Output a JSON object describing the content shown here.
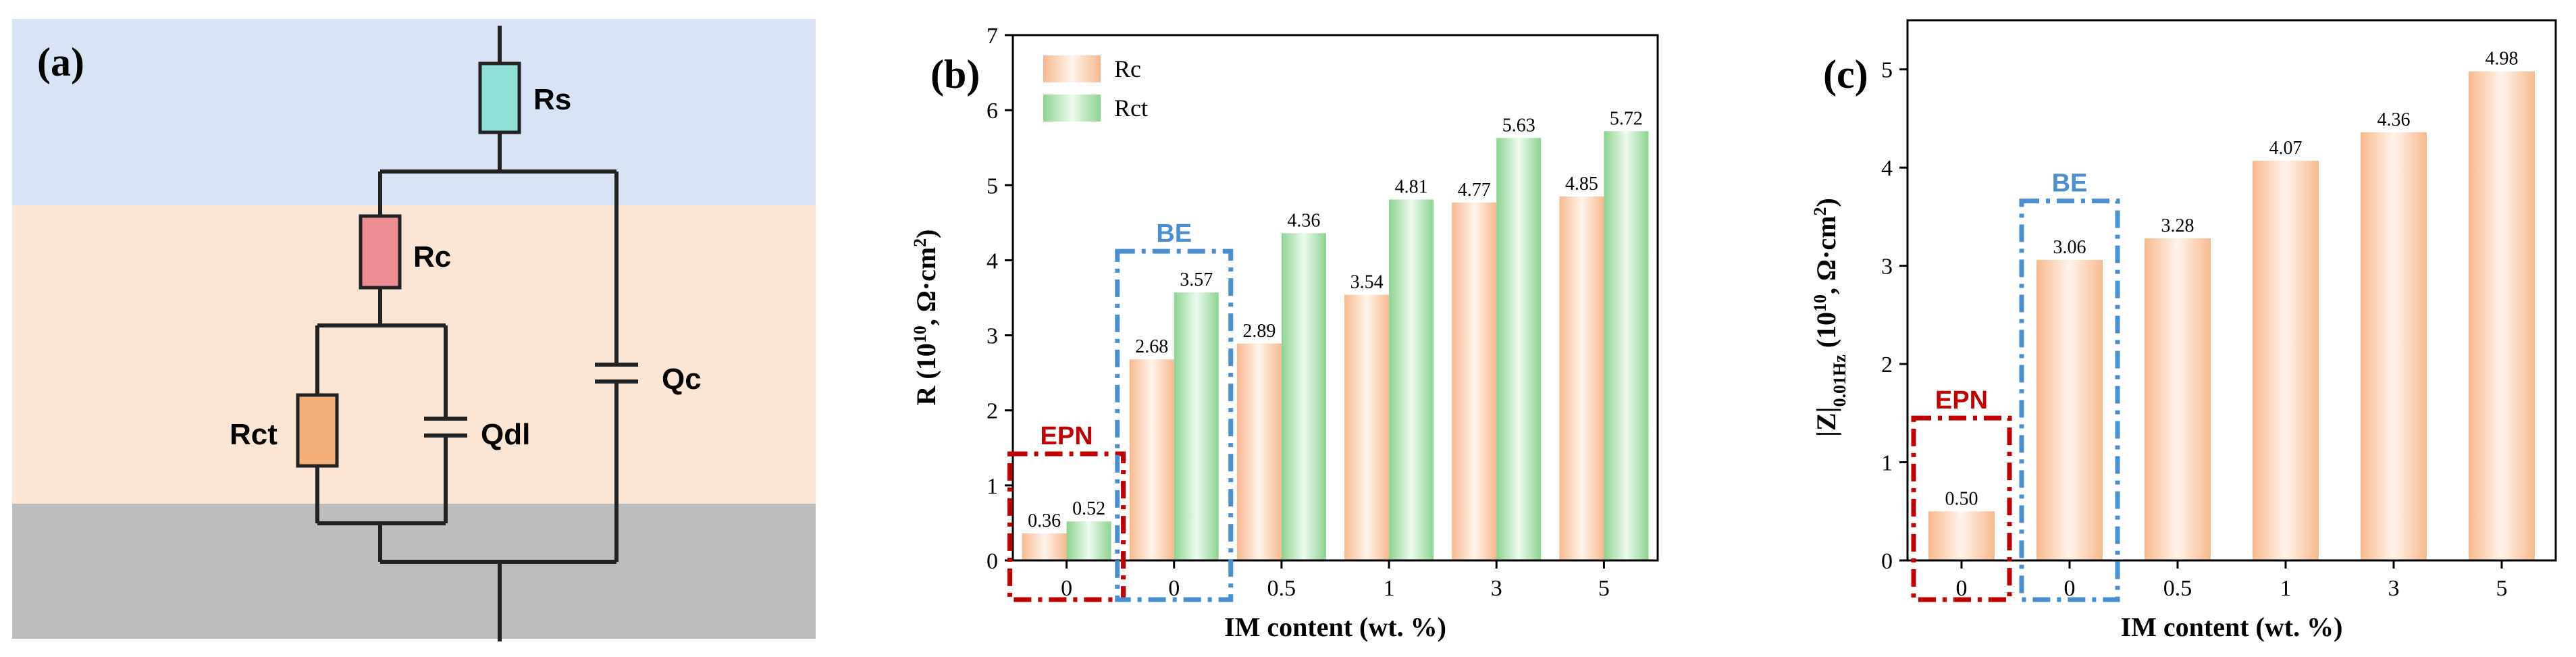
{
  "colors": {
    "bg_top": "#d9e3f6",
    "bg_mid": "#fbe6d6",
    "bg_bot": "#bdbdbd",
    "rs": "#8fe0d6",
    "rc": "#ee8c94",
    "rct": "#f4ae78",
    "bar_rc": "#f7b98e",
    "bar_rct": "#8bd390",
    "epn_box": "#c00000",
    "be_box": "#4a90d0",
    "epn_text": "#c00000",
    "be_text": "#4a90d0"
  },
  "panel_a": {
    "letter": "(a)",
    "components": {
      "rs": "Rs",
      "rc": "Rc",
      "rct": "Rct",
      "qdl": "Qdl",
      "qc": "Qc"
    }
  },
  "chart_data": [
    {
      "id": "b",
      "panel_letter": "(b)",
      "type": "bar",
      "categories": [
        "0",
        "0",
        "0.5",
        "1",
        "3",
        "5"
      ],
      "series": [
        {
          "name": "Rc",
          "values": [
            0.36,
            2.68,
            2.89,
            3.54,
            4.77,
            4.85
          ],
          "labels": [
            "0.36",
            "2.68",
            "2.89",
            "3.54",
            "4.77",
            "4.85"
          ]
        },
        {
          "name": "Rct",
          "values": [
            0.52,
            3.57,
            4.36,
            4.81,
            5.63,
            5.72
          ],
          "labels": [
            "0.52",
            "3.57",
            "4.36",
            "4.81",
            "5.63",
            "5.72"
          ]
        }
      ],
      "xlabel": "IM content (wt. %)",
      "ylabel_parts": [
        "R (10",
        "10",
        ", Ω·cm",
        "2",
        ")"
      ],
      "ylim": [
        0,
        7
      ],
      "yticks": [
        "0",
        "1",
        "2",
        "3",
        "4",
        "5",
        "6",
        "7"
      ],
      "legend": {
        "position": "top-left",
        "entries": [
          "Rc",
          "Rct"
        ]
      },
      "annotations": [
        {
          "text": "EPN",
          "group": 0,
          "style": "dash-dot",
          "color": "epn"
        },
        {
          "text": "BE",
          "group": 1,
          "style": "dash-dot",
          "color": "be"
        }
      ]
    },
    {
      "id": "c",
      "panel_letter": "(c)",
      "type": "bar",
      "categories": [
        "0",
        "0",
        "0.5",
        "1",
        "3",
        "5"
      ],
      "series": [
        {
          "name": "|Z|0.01Hz",
          "values": [
            0.5,
            3.06,
            3.28,
            4.07,
            4.36,
            4.98
          ],
          "labels": [
            "0.50",
            "3.06",
            "3.28",
            "4.07",
            "4.36",
            "4.98"
          ]
        }
      ],
      "xlabel": "IM content (wt. %)",
      "ylabel_parts": [
        "|Z|",
        "0.01Hz",
        " (10",
        "10",
        ", Ω·cm",
        "2",
        ")"
      ],
      "ylim": [
        0,
        5.5
      ],
      "yticks": [
        "0",
        "1",
        "2",
        "3",
        "4",
        "5"
      ],
      "annotations": [
        {
          "text": "EPN",
          "group": 0,
          "style": "dash-dot",
          "color": "epn"
        },
        {
          "text": "BE",
          "group": 1,
          "style": "dash-dot",
          "color": "be"
        }
      ]
    }
  ]
}
